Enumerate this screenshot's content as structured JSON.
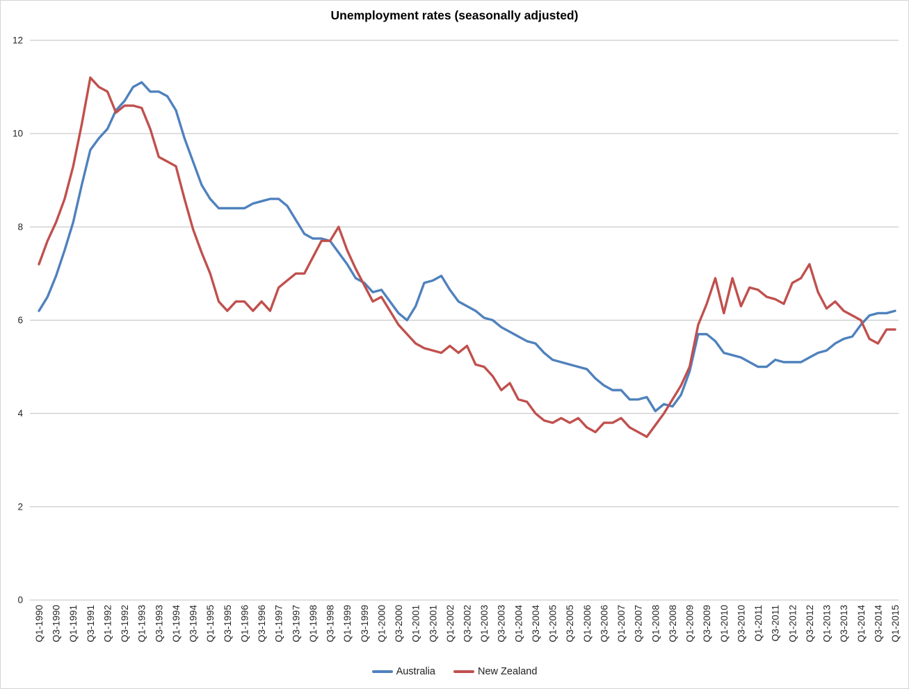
{
  "chart_data": {
    "type": "line",
    "title": "Unemployment rates (seasonally adjusted)",
    "xlabel": "",
    "ylabel": "",
    "ylim": [
      0,
      12
    ],
    "y_ticks": [
      0,
      2,
      4,
      6,
      8,
      10,
      12
    ],
    "x_tick_every": 2,
    "grid": "horizontal",
    "legend_position": "bottom-center",
    "categories": [
      "Q1-1990",
      "Q2-1990",
      "Q3-1990",
      "Q4-1990",
      "Q1-1991",
      "Q2-1991",
      "Q3-1991",
      "Q4-1991",
      "Q1-1992",
      "Q2-1992",
      "Q3-1992",
      "Q4-1992",
      "Q1-1993",
      "Q2-1993",
      "Q3-1993",
      "Q4-1993",
      "Q1-1994",
      "Q2-1994",
      "Q3-1994",
      "Q4-1994",
      "Q1-1995",
      "Q2-1995",
      "Q3-1995",
      "Q4-1995",
      "Q1-1996",
      "Q2-1996",
      "Q3-1996",
      "Q4-1996",
      "Q1-1997",
      "Q2-1997",
      "Q3-1997",
      "Q4-1997",
      "Q1-1998",
      "Q2-1998",
      "Q3-1998",
      "Q4-1998",
      "Q1-1999",
      "Q2-1999",
      "Q3-1999",
      "Q4-1999",
      "Q1-2000",
      "Q2-2000",
      "Q3-2000",
      "Q4-2000",
      "Q1-2001",
      "Q2-2001",
      "Q3-2001",
      "Q4-2001",
      "Q1-2002",
      "Q2-2002",
      "Q3-2002",
      "Q4-2002",
      "Q1-2003",
      "Q2-2003",
      "Q3-2003",
      "Q4-2003",
      "Q1-2004",
      "Q2-2004",
      "Q3-2004",
      "Q4-2004",
      "Q1-2005",
      "Q2-2005",
      "Q3-2005",
      "Q4-2005",
      "Q1-2006",
      "Q2-2006",
      "Q3-2006",
      "Q4-2006",
      "Q1-2007",
      "Q2-2007",
      "Q3-2007",
      "Q4-2007",
      "Q1-2008",
      "Q2-2008",
      "Q3-2008",
      "Q4-2008",
      "Q1-2009",
      "Q2-2009",
      "Q3-2009",
      "Q4-2009",
      "Q1-2010",
      "Q2-2010",
      "Q3-2010",
      "Q4-2010",
      "Q1-2011",
      "Q2-2011",
      "Q3-2011",
      "Q4-2011",
      "Q1-2012",
      "Q2-2012",
      "Q3-2012",
      "Q4-2012",
      "Q1-2013",
      "Q2-2013",
      "Q3-2013",
      "Q4-2013",
      "Q1-2014",
      "Q2-2014",
      "Q3-2014",
      "Q4-2014",
      "Q1-2015"
    ],
    "series": [
      {
        "name": "Australia",
        "color": "#4F81BD",
        "values": [
          6.2,
          6.5,
          6.95,
          7.5,
          8.1,
          8.9,
          9.65,
          9.9,
          10.1,
          10.5,
          10.7,
          11.0,
          11.1,
          10.9,
          10.9,
          10.8,
          10.5,
          9.9,
          9.4,
          8.9,
          8.6,
          8.4,
          8.4,
          8.4,
          8.4,
          8.5,
          8.55,
          8.6,
          8.6,
          8.45,
          8.15,
          7.85,
          7.75,
          7.75,
          7.7,
          7.45,
          7.2,
          6.9,
          6.8,
          6.6,
          6.65,
          6.4,
          6.15,
          6.0,
          6.3,
          6.8,
          6.85,
          6.95,
          6.65,
          6.4,
          6.3,
          6.2,
          6.05,
          6.0,
          5.85,
          5.75,
          5.65,
          5.55,
          5.5,
          5.3,
          5.15,
          5.1,
          5.05,
          5.0,
          4.95,
          4.75,
          4.6,
          4.5,
          4.5,
          4.3,
          4.3,
          4.35,
          4.05,
          4.2,
          4.15,
          4.4,
          4.9,
          5.7,
          5.7,
          5.55,
          5.3,
          5.25,
          5.2,
          5.1,
          5.0,
          5.0,
          5.15,
          5.1,
          5.1,
          5.1,
          5.2,
          5.3,
          5.35,
          5.5,
          5.6,
          5.65,
          5.9,
          6.1,
          6.15,
          6.15,
          6.2
        ]
      },
      {
        "name": "New Zealand",
        "color": "#C0504D",
        "values": [
          7.2,
          7.7,
          8.1,
          8.6,
          9.3,
          10.2,
          11.2,
          11.0,
          10.9,
          10.45,
          10.6,
          10.6,
          10.55,
          10.1,
          9.5,
          9.4,
          9.3,
          8.6,
          7.95,
          7.45,
          7.0,
          6.4,
          6.2,
          6.4,
          6.4,
          6.2,
          6.4,
          6.2,
          6.7,
          6.85,
          7.0,
          7.0,
          7.35,
          7.7,
          7.7,
          8.0,
          7.5,
          7.1,
          6.75,
          6.4,
          6.5,
          6.2,
          5.9,
          5.7,
          5.5,
          5.4,
          5.35,
          5.3,
          5.45,
          5.3,
          5.45,
          5.05,
          5.0,
          4.8,
          4.5,
          4.65,
          4.3,
          4.25,
          4.0,
          3.85,
          3.8,
          3.9,
          3.8,
          3.9,
          3.7,
          3.6,
          3.8,
          3.8,
          3.9,
          3.7,
          3.6,
          3.5,
          3.75,
          4.0,
          4.3,
          4.6,
          5.0,
          5.9,
          6.35,
          6.9,
          6.15,
          6.9,
          6.3,
          6.7,
          6.65,
          6.5,
          6.45,
          6.35,
          6.8,
          6.9,
          7.2,
          6.6,
          6.25,
          6.4,
          6.2,
          6.1,
          6.0,
          5.6,
          5.5,
          5.8,
          5.8
        ]
      }
    ]
  },
  "colors": {
    "gridline": "#BFBFBF",
    "axis_line": "#BFBFBF",
    "tick_label": "#262626",
    "legend_text": "#1F1F1F",
    "background": "#FFFFFF",
    "border": "#D4D4D4"
  }
}
